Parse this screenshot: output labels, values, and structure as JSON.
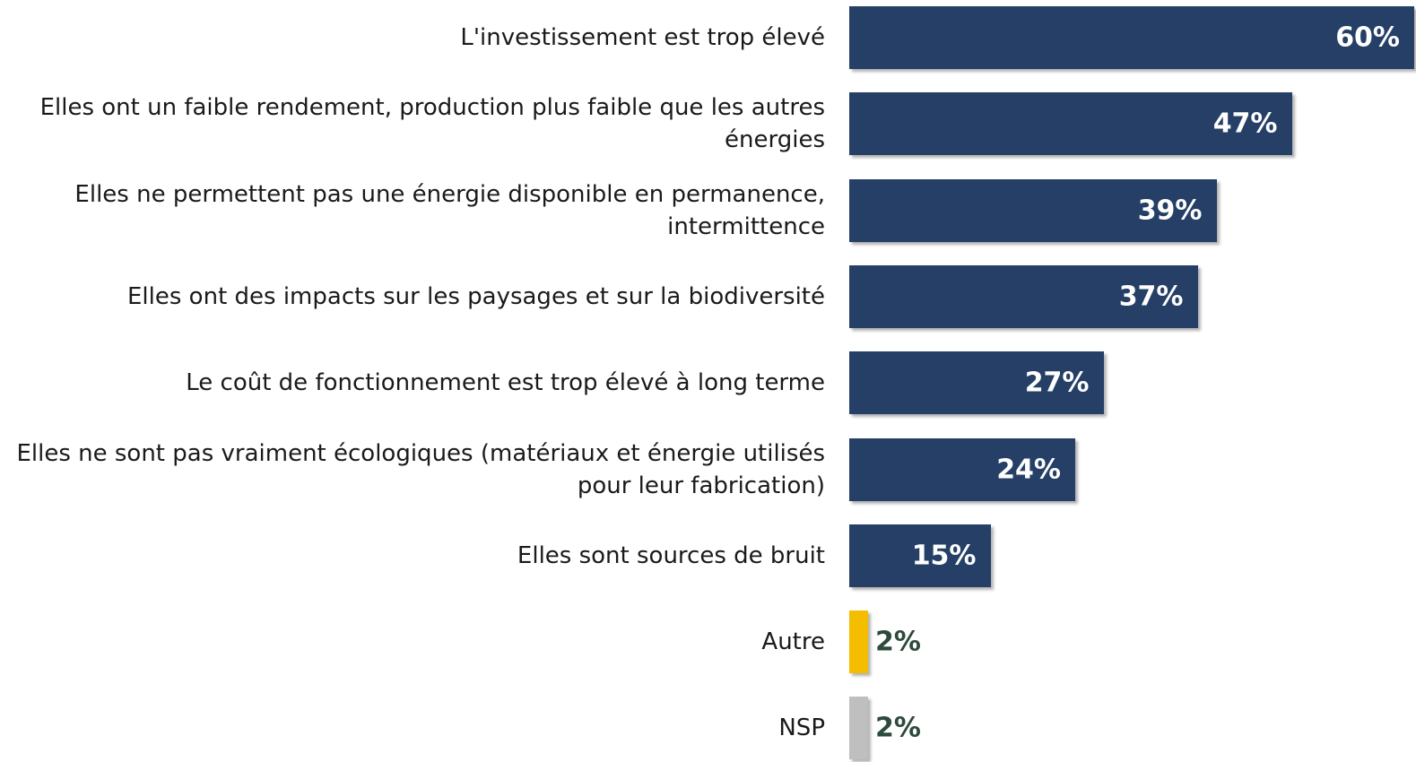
{
  "chart_data": {
    "type": "bar",
    "orientation": "horizontal",
    "categories": [
      "L'investissement est trop élevé",
      "Elles ont un faible rendement, production plus faible que les autres\nénergies",
      "Elles ne permettent pas une énergie disponible en permanence,\nintermittence",
      "Elles ont des impacts sur les paysages et sur la biodiversité",
      "Le coût de fonctionnement est trop élevé à long terme",
      "Elles ne sont pas vraiment écologiques (matériaux et énergie utilisés\npour leur fabrication)",
      "Elles sont sources de bruit",
      "Autre",
      "NSP"
    ],
    "values": [
      60,
      47,
      39,
      37,
      27,
      24,
      15,
      2,
      2
    ],
    "value_labels": [
      "60%",
      "47%",
      "39%",
      "37%",
      "27%",
      "24%",
      "15%",
      "2%",
      "2%"
    ],
    "colors": [
      "#253f66",
      "#253f66",
      "#253f66",
      "#253f66",
      "#253f66",
      "#253f66",
      "#253f66",
      "#f5bd00",
      "#bfbfbf"
    ]
  }
}
